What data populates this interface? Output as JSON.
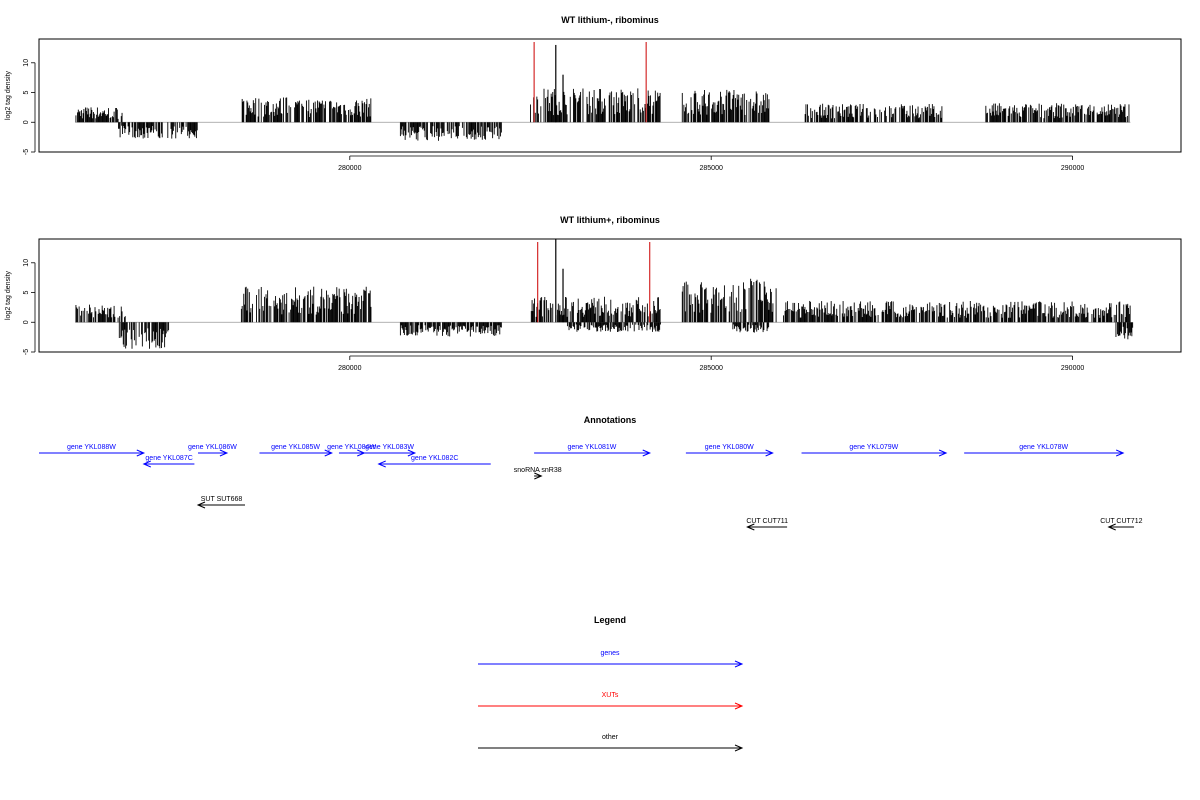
{
  "colors": {
    "gene": "#0000ff",
    "xut": "#ff0000",
    "other": "#000000",
    "signal": "#000000",
    "marker": "#cc0000",
    "baseline": "#999999"
  },
  "chart_data": [
    {
      "type": "bar",
      "title": "WT lithium-, ribominus",
      "ylabel": "log2 tag density",
      "xlim": [
        275700,
        291500
      ],
      "ylim": [
        -5,
        14
      ],
      "x_ticks": [
        280000,
        285000,
        290000
      ],
      "x_tick_labels": [
        "280000",
        "285000",
        "290000"
      ],
      "y_ticks": [
        -5,
        0,
        5,
        10
      ],
      "y_tick_labels": [
        "-5",
        "0",
        "5",
        "10"
      ],
      "markers_x": [
        282550,
        284100
      ],
      "signal_regions": [
        {
          "start": 276200,
          "end": 276850,
          "level": 2.2,
          "strand": "+"
        },
        {
          "start": 276800,
          "end": 277900,
          "level": -2.3,
          "strand": "-"
        },
        {
          "start": 278500,
          "end": 279450,
          "level": 3.6,
          "strand": "+"
        },
        {
          "start": 279400,
          "end": 280300,
          "level": 3.4,
          "strand": "+"
        },
        {
          "start": 280700,
          "end": 282100,
          "level": -2.6,
          "strand": "-"
        },
        {
          "start": 282500,
          "end": 284300,
          "level": 4.8,
          "strand": "+"
        },
        {
          "start": 284600,
          "end": 285800,
          "level": 4.6,
          "strand": "+"
        },
        {
          "start": 286300,
          "end": 288200,
          "level": 2.6,
          "strand": "+"
        },
        {
          "start": 288800,
          "end": 290800,
          "level": 2.7,
          "strand": "+"
        }
      ],
      "peaks": [
        {
          "x": 282850,
          "value": 13
        },
        {
          "x": 282950,
          "value": 8
        }
      ]
    },
    {
      "type": "bar",
      "title": "WT lithium+, ribominus",
      "ylabel": "log2 tag density",
      "xlim": [
        275700,
        291500
      ],
      "ylim": [
        -5,
        14
      ],
      "x_ticks": [
        280000,
        285000,
        290000
      ],
      "x_tick_labels": [
        "280000",
        "285000",
        "290000"
      ],
      "y_ticks": [
        -5,
        0,
        5,
        10
      ],
      "y_tick_labels": [
        "-5",
        "0",
        "5",
        "10"
      ],
      "markers_x": [
        282600,
        284150
      ],
      "signal_regions": [
        {
          "start": 276200,
          "end": 276900,
          "level": 2.6,
          "strand": "+"
        },
        {
          "start": 276800,
          "end": 277500,
          "level": -3.8,
          "strand": "-"
        },
        {
          "start": 278500,
          "end": 280300,
          "level": 5.0,
          "strand": "+"
        },
        {
          "start": 280700,
          "end": 282100,
          "level": -2.0,
          "strand": "-"
        },
        {
          "start": 282500,
          "end": 284300,
          "level": 3.6,
          "strand": "+"
        },
        {
          "start": 283000,
          "end": 284300,
          "level": -1.4,
          "strand": "-"
        },
        {
          "start": 284600,
          "end": 285900,
          "level": 6.2,
          "strand": "+"
        },
        {
          "start": 285300,
          "end": 285800,
          "level": -1.5,
          "strand": "-"
        },
        {
          "start": 286000,
          "end": 290800,
          "level": 3.0,
          "strand": "+"
        },
        {
          "start": 290600,
          "end": 290850,
          "level": -2.5,
          "strand": "-"
        }
      ],
      "peaks": [
        {
          "x": 282850,
          "value": 14
        },
        {
          "x": 282950,
          "value": 9
        }
      ]
    }
  ],
  "annotations": {
    "title": "Annotations",
    "features": [
      {
        "label": "gene YKL088W",
        "start": 275700,
        "end": 277150,
        "strand": "+",
        "kind": "gene",
        "row": 0
      },
      {
        "label": "gene YKL087C",
        "start": 277150,
        "end": 277850,
        "strand": "-",
        "kind": "gene",
        "row": 1
      },
      {
        "label": "gene YKL086W",
        "start": 277900,
        "end": 278300,
        "strand": "+",
        "kind": "gene",
        "row": 0
      },
      {
        "label": "gene YKL085W",
        "start": 278750,
        "end": 279750,
        "strand": "+",
        "kind": "gene",
        "row": 0
      },
      {
        "label": "gene YKL084W",
        "start": 279850,
        "end": 280200,
        "strand": "+",
        "kind": "gene",
        "row": 0
      },
      {
        "label": "gene YKL083W",
        "start": 280200,
        "end": 280900,
        "strand": "+",
        "kind": "gene",
        "row": 0
      },
      {
        "label": "gene YKL082C",
        "start": 280400,
        "end": 281950,
        "strand": "-",
        "kind": "gene",
        "row": 1
      },
      {
        "label": "gene YKL081W",
        "start": 282550,
        "end": 284150,
        "strand": "+",
        "kind": "gene",
        "row": 0
      },
      {
        "label": "snoRNA snR38",
        "start": 282550,
        "end": 282650,
        "strand": "+",
        "kind": "other",
        "row": 2
      },
      {
        "label": "gene YKL080W",
        "start": 284650,
        "end": 285850,
        "strand": "+",
        "kind": "gene",
        "row": 0
      },
      {
        "label": "gene YKL079W",
        "start": 286250,
        "end": 288250,
        "strand": "+",
        "kind": "gene",
        "row": 0
      },
      {
        "label": "gene YKL078W",
        "start": 288500,
        "end": 290700,
        "strand": "+",
        "kind": "gene",
        "row": 0
      },
      {
        "label": "SUT SUT668",
        "start": 277900,
        "end": 278550,
        "strand": "-",
        "kind": "other",
        "row": 4
      },
      {
        "label": "CUT CUT711",
        "start": 285500,
        "end": 286050,
        "strand": "-",
        "kind": "other",
        "row": 5
      },
      {
        "label": "CUT CUT712",
        "start": 290500,
        "end": 290850,
        "strand": "-",
        "kind": "other",
        "row": 5
      }
    ]
  },
  "legend": {
    "title": "Legend",
    "entries": [
      {
        "label": "genes",
        "kind": "gene"
      },
      {
        "label": "XUTs",
        "kind": "xut"
      },
      {
        "label": "other",
        "kind": "other"
      }
    ]
  }
}
